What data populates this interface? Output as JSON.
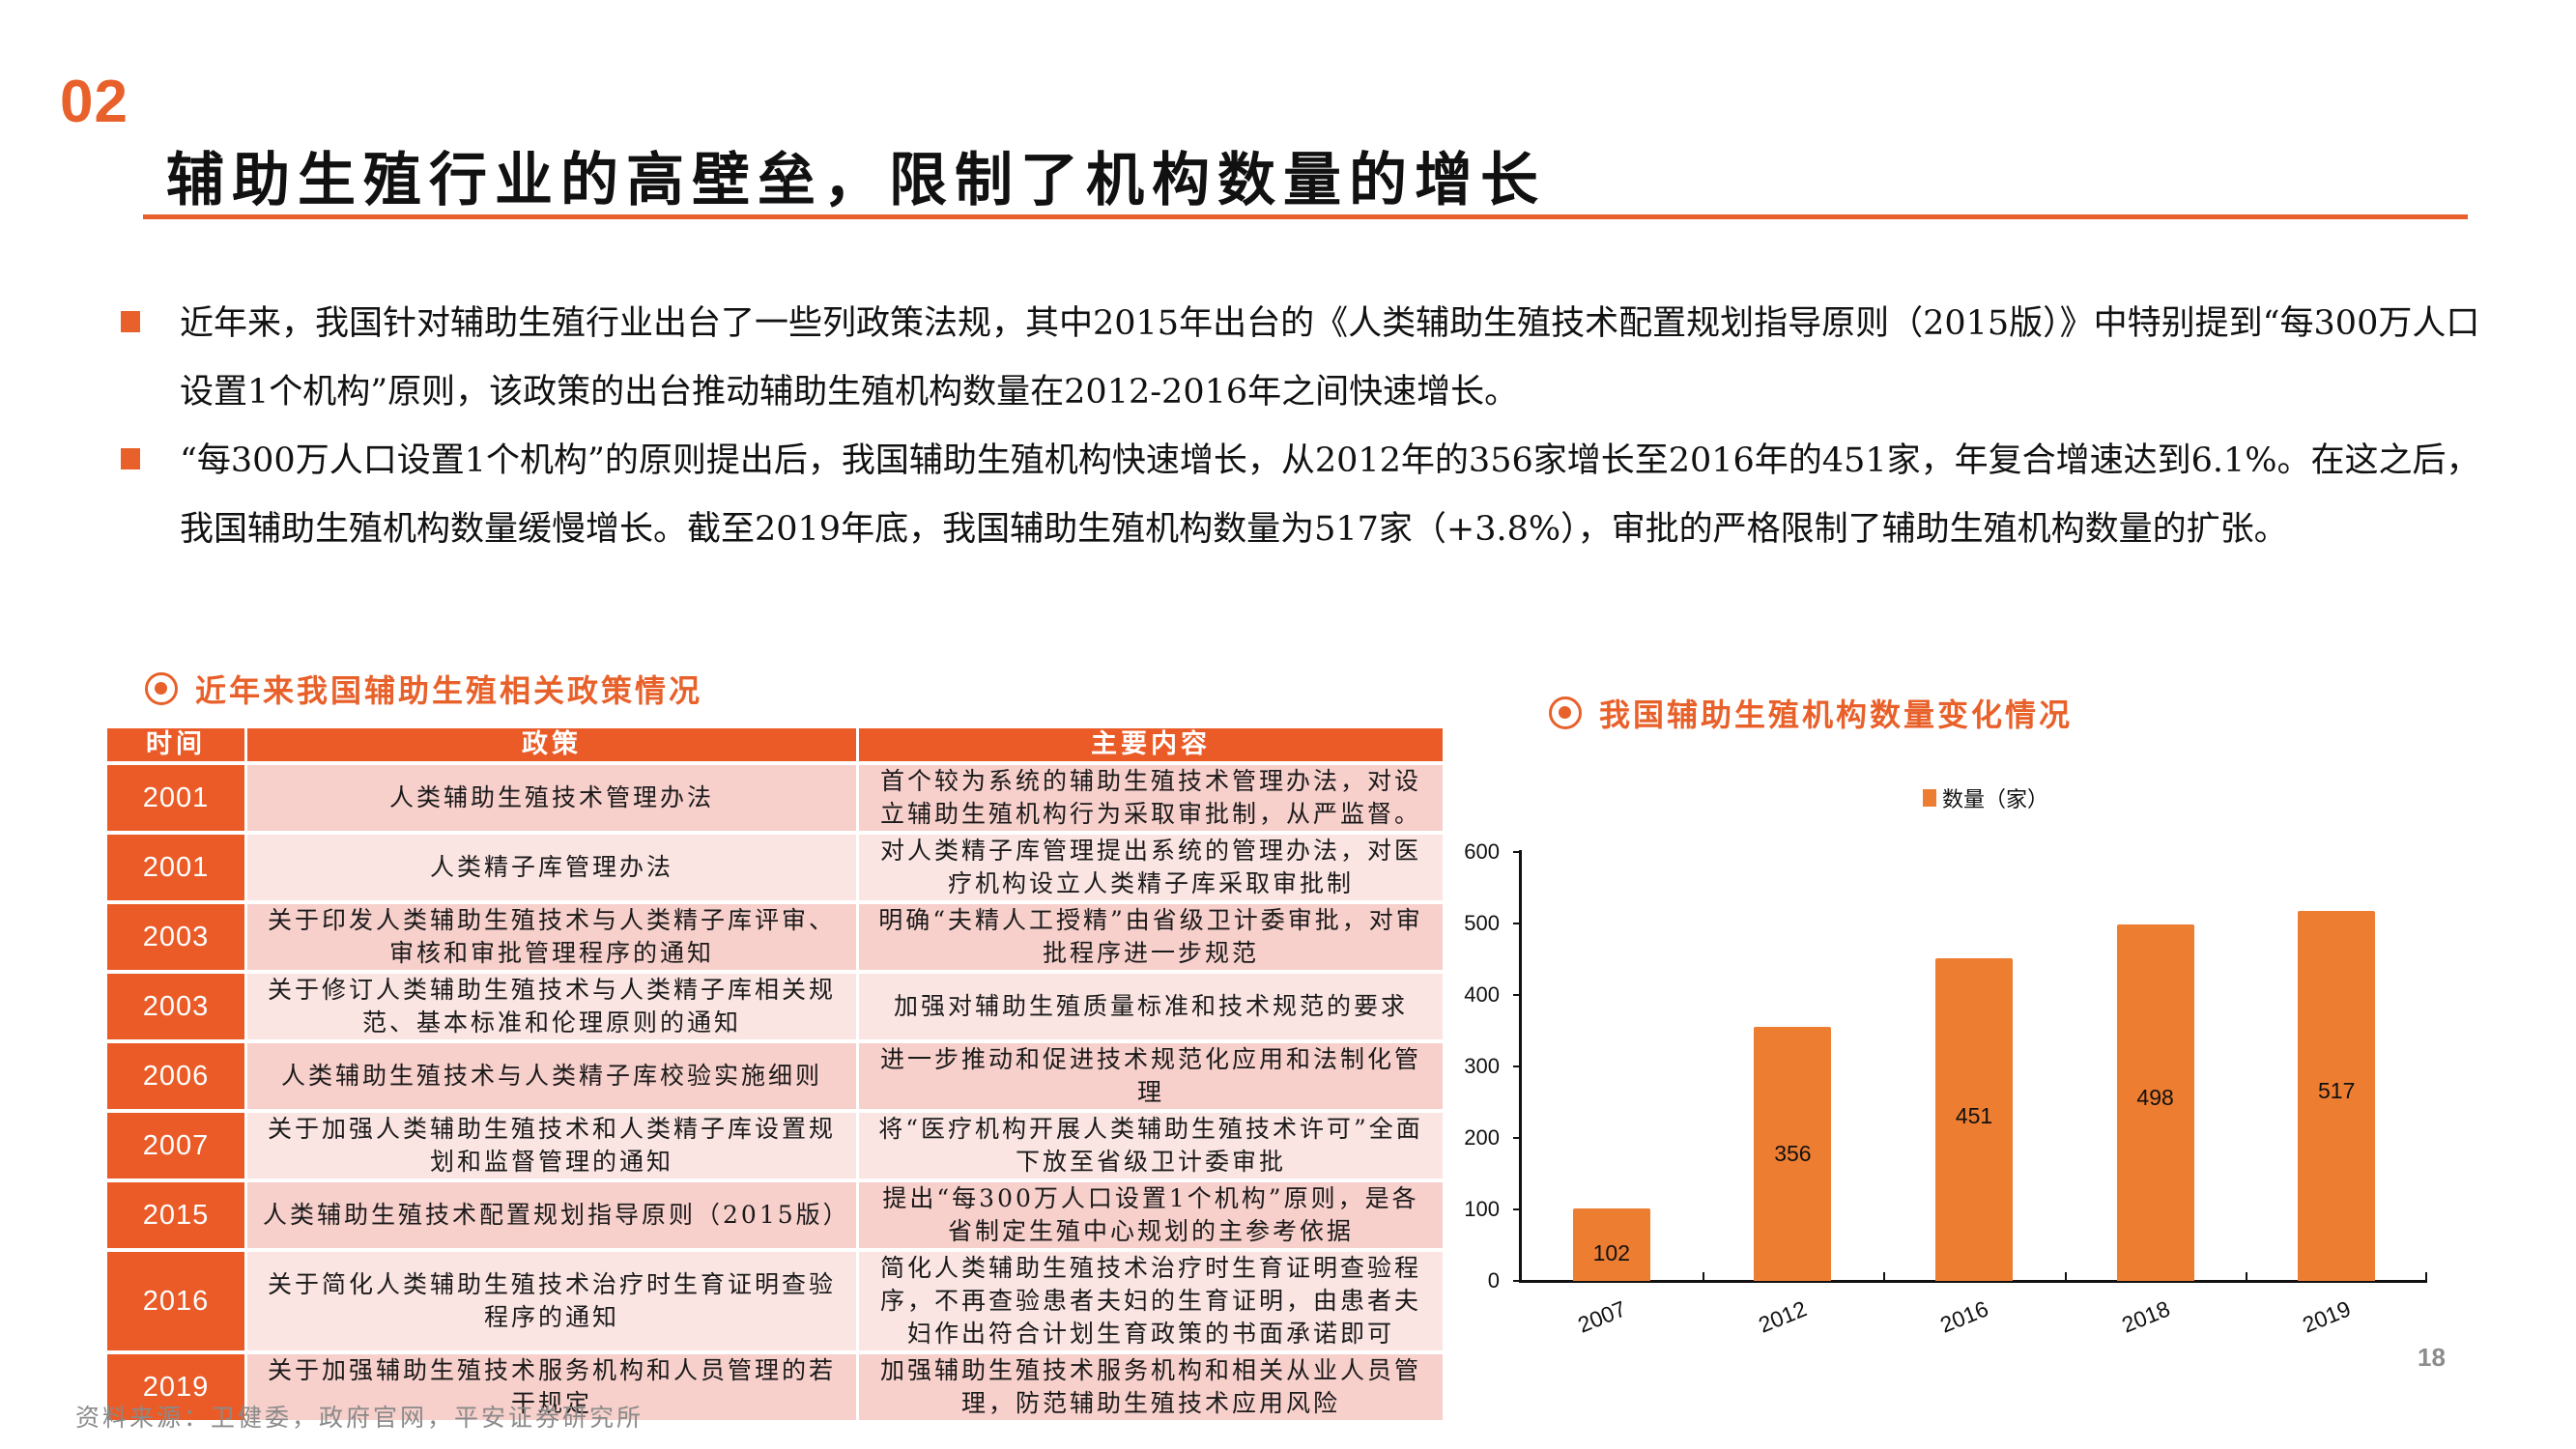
{
  "header": {
    "section_number": "02",
    "title": "辅助生殖行业的高壁垒，限制了机构数量的增长"
  },
  "bullets": [
    "近年来，我国针对辅助生殖行业出台了一些列政策法规，其中2015年出台的《人类辅助生殖技术配置规划指导原则（2015版）》中特别提到“每300万人口设置1个机构”原则，该政策的出台推动辅助生殖机构数量在2012-2016年之间快速增长。",
    "“每300万人口设置1个机构”的原则提出后，我国辅助生殖机构快速增长，从2012年的356家增长至2016年的451家，年复合增速达到6.1%。在这之后，我国辅助生殖机构数量缓慢增长。截至2019年底，我国辅助生殖机构数量为517家（+3.8%），审批的严格限制了辅助生殖机构数量的扩张。"
  ],
  "policy_table": {
    "title": "近年来我国辅助生殖相关政策情况",
    "headers": [
      "时间",
      "政策",
      "主要内容"
    ],
    "rows": [
      {
        "year": "2001",
        "policy": "人类辅助生殖技术管理办法",
        "content": "首个较为系统的辅助生殖技术管理办法，对设立辅助生殖机构行为采取审批制，从严监督。"
      },
      {
        "year": "2001",
        "policy": "人类精子库管理办法",
        "content": "对人类精子库管理提出系统的管理办法，对医疗机构设立人类精子库采取审批制"
      },
      {
        "year": "2003",
        "policy": "关于印发人类辅助生殖技术与人类精子库评审、审核和审批管理程序的通知",
        "content": "明确“夫精人工授精”由省级卫计委审批，对审批程序进一步规范"
      },
      {
        "year": "2003",
        "policy": "关于修订人类辅助生殖技术与人类精子库相关规范、基本标准和伦理原则的通知",
        "content": "加强对辅助生殖质量标准和技术规范的要求"
      },
      {
        "year": "2006",
        "policy": "人类辅助生殖技术与人类精子库校验实施细则",
        "content": "进一步推动和促进技术规范化应用和法制化管理"
      },
      {
        "year": "2007",
        "policy": "关于加强人类辅助生殖技术和人类精子库设置规划和监督管理的通知",
        "content": "将“医疗机构开展人类辅助生殖技术许可”全面下放至省级卫计委审批"
      },
      {
        "year": "2015",
        "policy": "人类辅助生殖技术配置规划指导原则（2015版）",
        "content": "提出“每300万人口设置1个机构”原则，是各省制定生殖中心规划的主参考依据"
      },
      {
        "year": "2016",
        "policy": "关于简化人类辅助生殖技术治疗时生育证明查验程序的通知",
        "content": "简化人类辅助生殖技术治疗时生育证明查验程序，不再查验患者夫妇的生育证明，由患者夫妇作出符合计划生育政策的书面承诺即可"
      },
      {
        "year": "2019",
        "policy": "关于加强辅助生殖技术服务机构和人员管理的若干规定",
        "content": "加强辅助生殖技术服务机构和相关从业人员管理，防范辅助生殖技术应用风险"
      }
    ]
  },
  "chart_section": {
    "title": "我国辅助生殖机构数量变化情况"
  },
  "chart_data": {
    "type": "bar",
    "title": "我国辅助生殖机构数量变化情况",
    "categories": [
      "2007",
      "2012",
      "2016",
      "2018",
      "2019"
    ],
    "series": [
      {
        "name": "数量（家）",
        "values": [
          102,
          356,
          451,
          498,
          517
        ],
        "color": "#ED7D31"
      }
    ],
    "values": [
      102,
      356,
      451,
      498,
      517
    ],
    "xlabel": "",
    "ylabel": "",
    "ylim": [
      0,
      600
    ],
    "yticks": [
      0,
      100,
      200,
      300,
      400,
      500,
      600
    ],
    "grid": false,
    "legend_position": "top",
    "data_labels": true
  },
  "footer": {
    "source": "资料来源：卫健委，政府官网，平安证券研究所",
    "page_number": "18"
  },
  "colors": {
    "accent": "#E8602A",
    "table_header": "#EA5B27",
    "row_dark": "#F7CFCB",
    "row_light": "#FBE5E3",
    "bar": "#ED7D31"
  }
}
